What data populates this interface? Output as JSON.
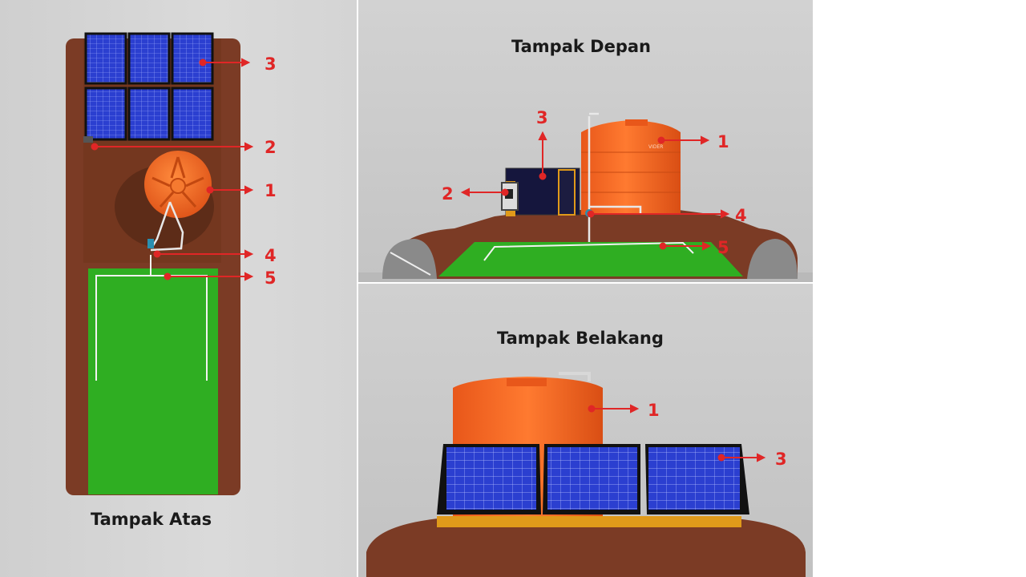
{
  "views": {
    "top": {
      "title": "Tampak Atas"
    },
    "front": {
      "title": "Tampak Depan"
    },
    "back": {
      "title": "Tampak Belakang"
    }
  },
  "callouts": {
    "top": [
      "3",
      "2",
      "1",
      "4",
      "5"
    ],
    "front": [
      "3",
      "1",
      "2",
      "4",
      "5"
    ],
    "back": [
      "1",
      "3"
    ]
  },
  "tank_brand": "VIDER",
  "colors": {
    "annotation": "#e02626",
    "soil": "#7b3b25",
    "grass": "#2fae22",
    "tank": "#f06a1f",
    "solar_cell": "#2b3fd0",
    "frame": "#e09a1a"
  }
}
